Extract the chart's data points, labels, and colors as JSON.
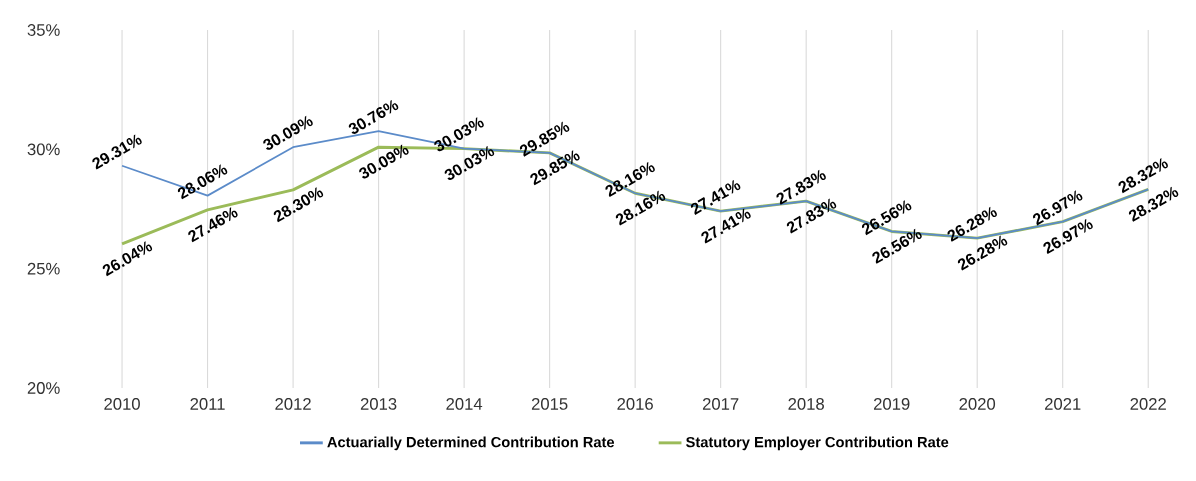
{
  "chart_data": {
    "type": "line",
    "categories": [
      "2010",
      "2011",
      "2012",
      "2013",
      "2014",
      "2015",
      "2016",
      "2017",
      "2018",
      "2019",
      "2020",
      "2021",
      "2022"
    ],
    "series": [
      {
        "name": "Actuarially Determined Contribution Rate",
        "color": "#5b8bc9",
        "values": [
          29.31,
          28.06,
          30.09,
          30.76,
          30.03,
          29.85,
          28.16,
          27.41,
          27.83,
          26.56,
          26.28,
          26.97,
          28.32
        ],
        "value_labels": [
          "29.31%",
          "28.06%",
          "30.09%",
          "30.76%",
          "30.03%",
          "29.85%",
          "28.16%",
          "27.41%",
          "27.83%",
          "26.56%",
          "26.28%",
          "26.97%",
          "28.32%"
        ]
      },
      {
        "name": "Statutory Employer Contribution Rate",
        "color": "#9bbb59",
        "values": [
          26.04,
          27.46,
          28.3,
          30.09,
          30.03,
          29.85,
          28.16,
          27.41,
          27.83,
          26.56,
          26.28,
          26.97,
          28.32
        ],
        "value_labels": [
          "26.04%",
          "27.46%",
          "28.30%",
          "30.09%",
          "30.03%",
          "29.85%",
          "28.16%",
          "27.41%",
          "27.83%",
          "26.56%",
          "26.28%",
          "26.97%",
          "28.32%"
        ]
      }
    ],
    "ylim": [
      20,
      35
    ],
    "yticks": [
      {
        "value": 20,
        "label": "20%"
      },
      {
        "value": 25,
        "label": "25%"
      },
      {
        "value": 30,
        "label": "30%"
      },
      {
        "value": 35,
        "label": "35%"
      }
    ],
    "grid": "x",
    "legend": "bottom",
    "marker": "none",
    "line_style": "solid"
  }
}
